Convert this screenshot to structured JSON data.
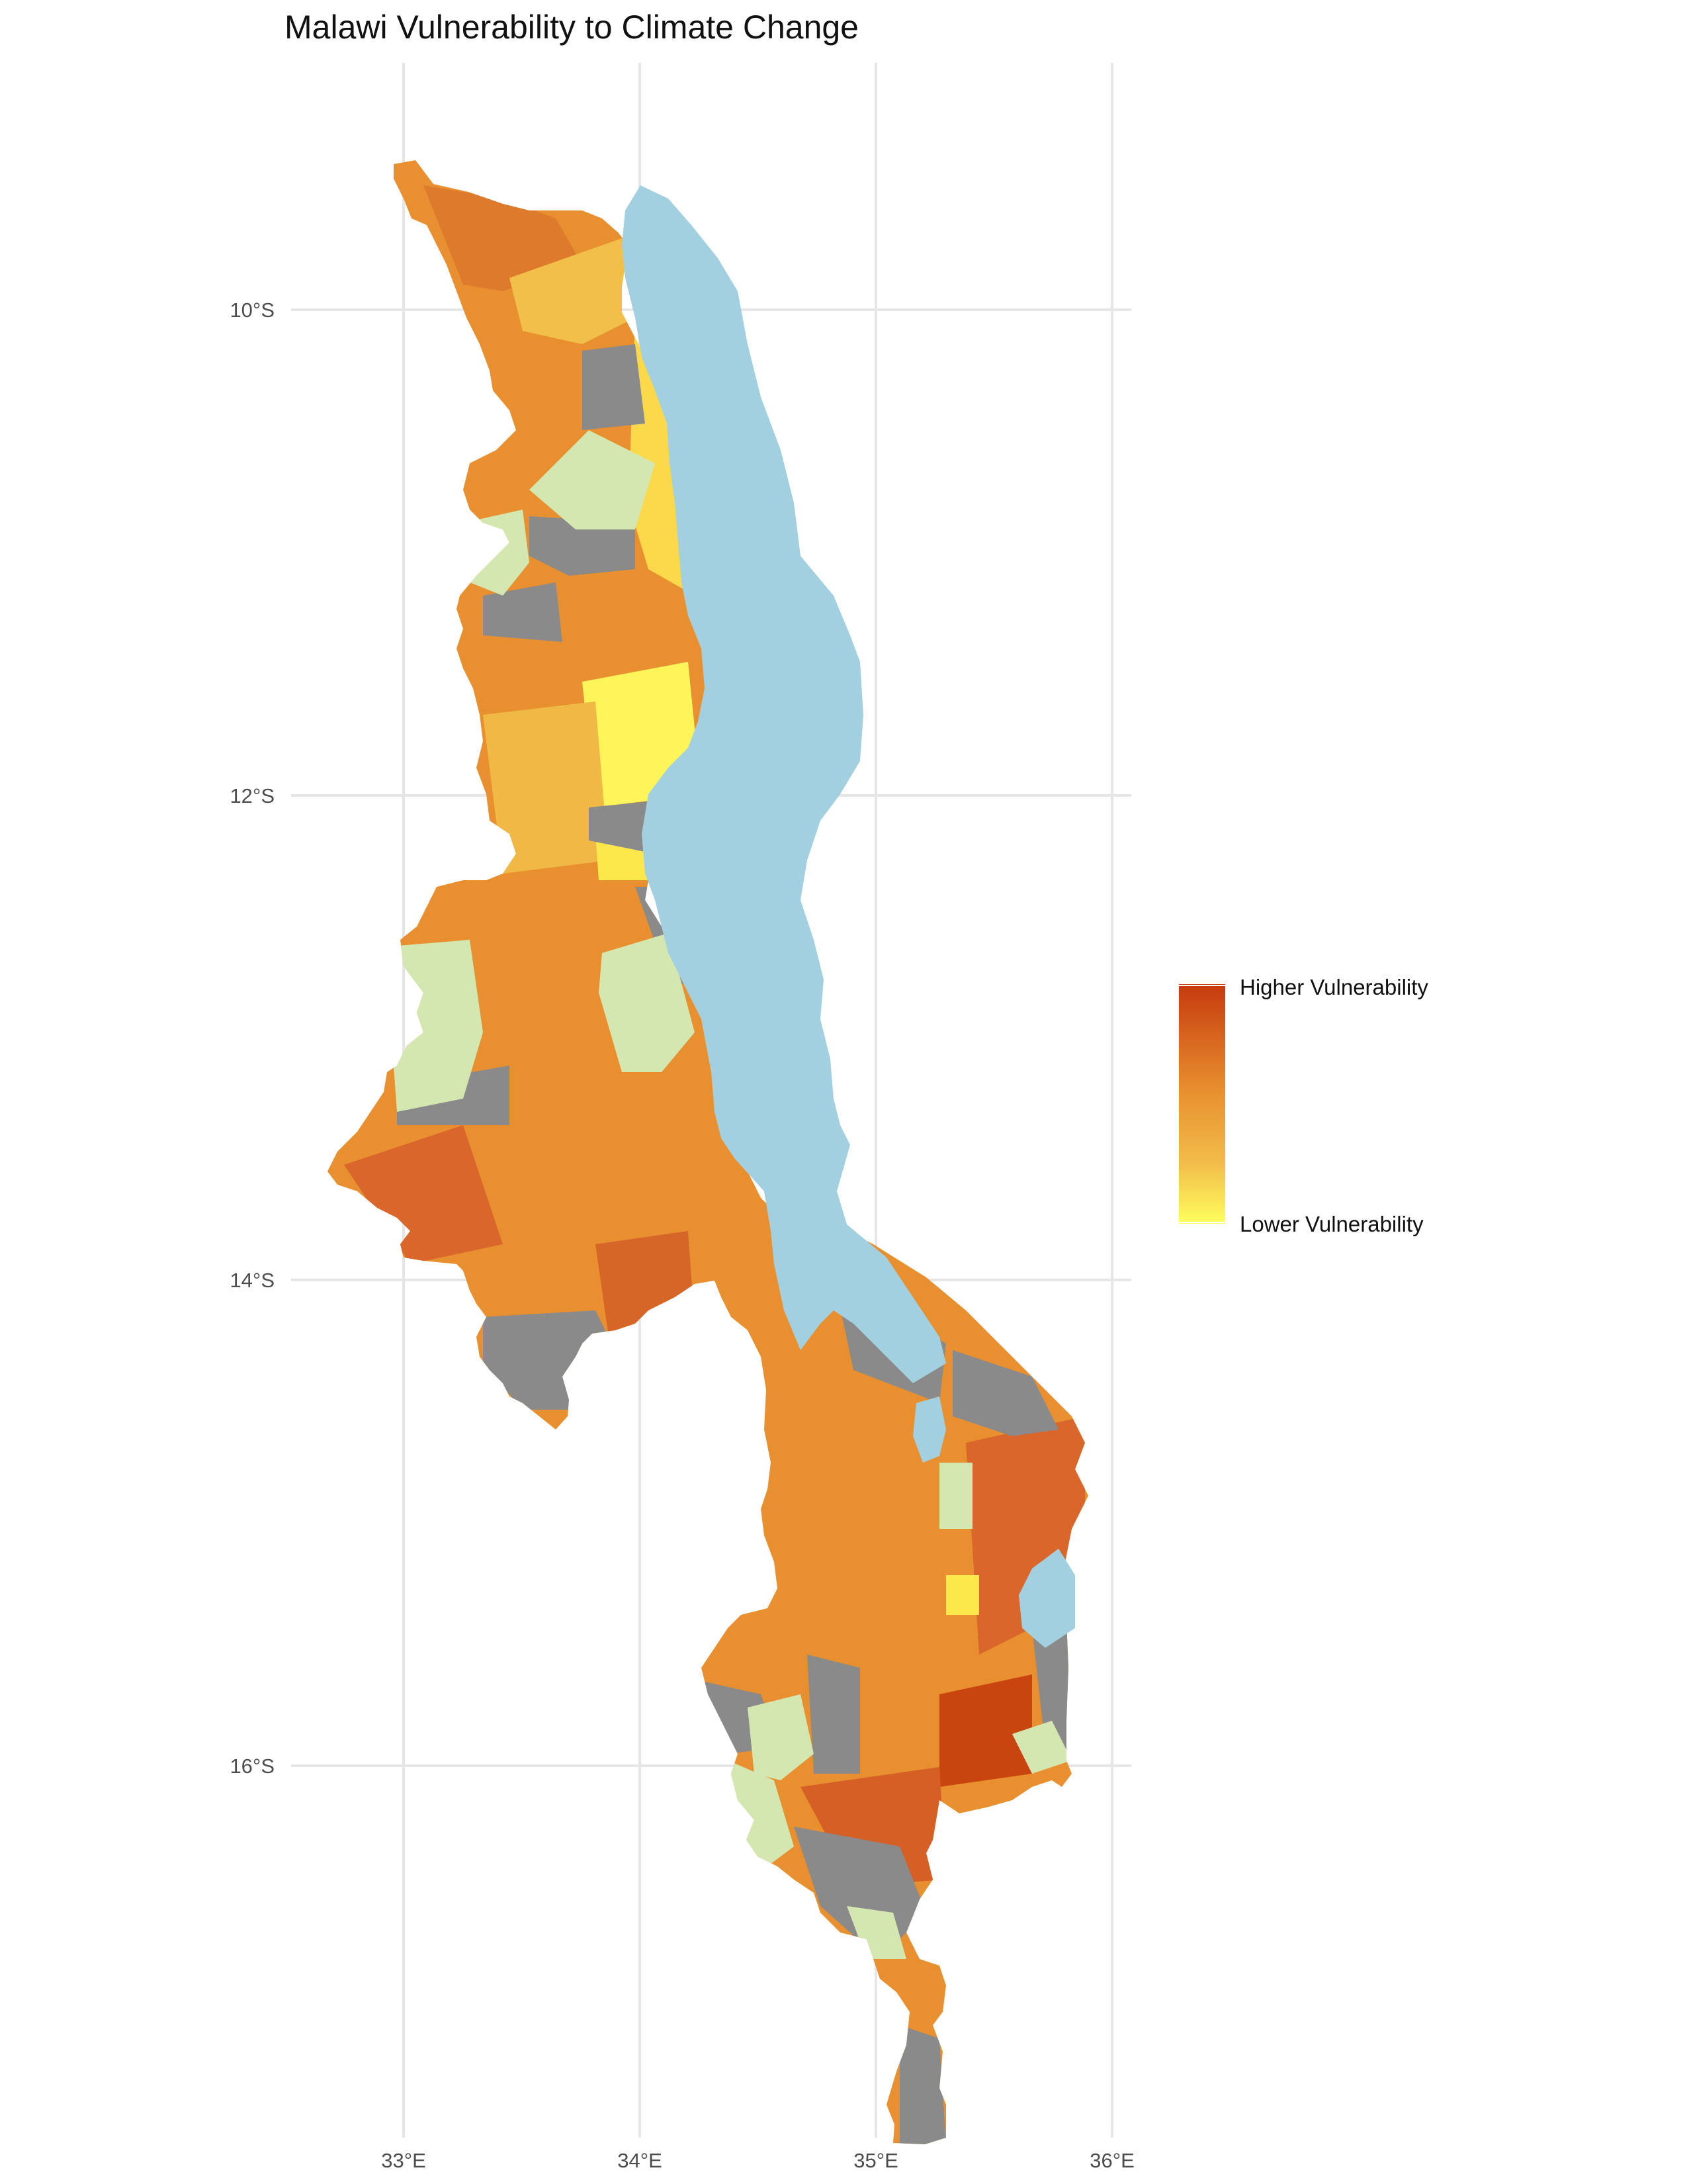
{
  "title": "Malawi Vulnerability to Climate Change",
  "axes": {
    "x_ticks": [
      "33°E",
      "34°E",
      "35°E",
      "36°E"
    ],
    "y_ticks": [
      "10°S",
      "12°S",
      "14°S",
      "16°S"
    ]
  },
  "legend": {
    "high_label": "Higher Vulnerability",
    "low_label": "Lower Vulnerability",
    "high_color": "#c63a0e",
    "low_color": "#ffff5e"
  },
  "colors": {
    "lake": "#a3d0e0",
    "no_data": "#8a8a8a",
    "protected_areas": "#d4e7b0",
    "mid_orange": "#e8902f",
    "dark_orange": "#d9662a",
    "light_orange": "#f0b946",
    "yellow": "#fde84c"
  }
}
